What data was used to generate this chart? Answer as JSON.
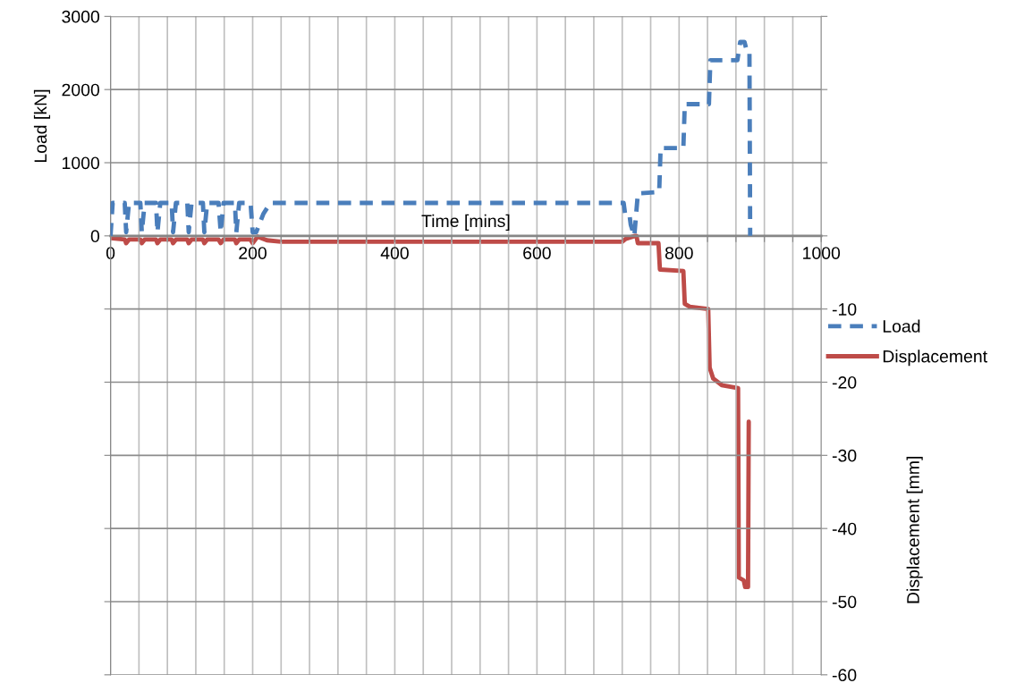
{
  "chart_data": {
    "type": "line",
    "xlabel": "Time [mins]",
    "ylabel": "Load [kN]",
    "y2label": "Displacement [mm]",
    "xlim": [
      0,
      1000
    ],
    "xticks": [
      0,
      {
        "value": 40,
        "label": null
      },
      {
        "value": 80,
        "label": null
      },
      {
        "value": 120,
        "label": null
      },
      {
        "value": 160,
        "label": null
      },
      200,
      {
        "value": 240,
        "label": null
      },
      {
        "value": 280,
        "label": null
      },
      {
        "value": 320,
        "label": null
      },
      {
        "value": 360,
        "label": null
      },
      400,
      {
        "value": 440,
        "label": null
      },
      {
        "value": 480,
        "label": null
      },
      {
        "value": 520,
        "label": null
      },
      {
        "value": 560,
        "label": null
      },
      600,
      {
        "value": 640,
        "label": null
      },
      {
        "value": 680,
        "label": null
      },
      {
        "value": 720,
        "label": null
      },
      {
        "value": 760,
        "label": null
      },
      800,
      {
        "value": 840,
        "label": null
      },
      {
        "value": 880,
        "label": null
      },
      {
        "value": 920,
        "label": null
      },
      {
        "value": 960,
        "label": null
      },
      1000
    ],
    "ylim": [
      -6000,
      3000
    ],
    "yticks": [
      {
        "value": -6000,
        "label": null
      },
      {
        "value": -5000,
        "label": null
      },
      {
        "value": -4000,
        "label": null
      },
      {
        "value": -3000,
        "label": null
      },
      {
        "value": -2000,
        "label": null
      },
      {
        "value": -1000,
        "label": null
      },
      0,
      1000,
      2000,
      3000
    ],
    "y2lim": [
      -60,
      30
    ],
    "y2ticks": [
      -60,
      -50,
      -40,
      -30,
      -20,
      -10,
      {
        "value": 0,
        "label": null
      },
      {
        "value": 10,
        "label": null
      },
      {
        "value": 20,
        "label": null
      },
      {
        "value": 30,
        "label": null
      }
    ],
    "grid": true,
    "legend": "right",
    "series": [
      {
        "name": "Load",
        "color": "#4a7ebb",
        "line_style": "dashed",
        "x": [
          0,
          3,
          20,
          22,
          26,
          42,
          44,
          48,
          64,
          66,
          70,
          86,
          88,
          92,
          108,
          110,
          114,
          130,
          132,
          136,
          152,
          155,
          159,
          175,
          177,
          181,
          197,
          200,
          205,
          215,
          225,
          722,
          724,
          730,
          732,
          737,
          742,
          772,
          774,
          806,
          808,
          842,
          844,
          882,
          886,
          892,
          896,
          899,
          900
        ],
        "values": [
          0,
          450,
          450,
          50,
          450,
          450,
          50,
          450,
          450,
          50,
          450,
          450,
          50,
          450,
          450,
          50,
          450,
          450,
          50,
          450,
          450,
          50,
          450,
          450,
          50,
          450,
          450,
          50,
          50,
          300,
          450,
          450,
          300,
          300,
          150,
          0,
          580,
          600,
          1200,
          1200,
          1800,
          1800,
          2400,
          2400,
          2650,
          2650,
          2500,
          2500,
          0
        ]
      },
      {
        "name": "Displacement",
        "color": "#be4b48",
        "line_style": "solid",
        "axis": "y2",
        "x": [
          0,
          20,
          22,
          26,
          42,
          44,
          48,
          64,
          66,
          70,
          86,
          88,
          92,
          108,
          110,
          114,
          130,
          132,
          136,
          152,
          155,
          159,
          175,
          177,
          181,
          197,
          200,
          207,
          220,
          240,
          720,
          725,
          738,
          740,
          742,
          771,
          773,
          806,
          808,
          815,
          841,
          843,
          848,
          860,
          883,
          884,
          891,
          893,
          897,
          898
        ],
        "values": [
          -0.3,
          -0.5,
          -1.0,
          -0.5,
          -0.5,
          -1.0,
          -0.5,
          -0.5,
          -1.0,
          -0.5,
          -0.5,
          -1.0,
          -0.5,
          -0.5,
          -1.0,
          -0.5,
          -0.5,
          -1.0,
          -0.5,
          -0.5,
          -1.0,
          -0.5,
          -0.5,
          -1.0,
          -0.5,
          -0.5,
          -1.0,
          -0.1,
          -0.6,
          -0.8,
          -0.8,
          -0.4,
          0,
          0,
          -1.0,
          -1.0,
          -4.6,
          -4.8,
          -9.3,
          -9.7,
          -10.0,
          -18.0,
          -19.5,
          -20.4,
          -20.8,
          -46.7,
          -47.1,
          -48.0,
          -48.0,
          -25.4
        ]
      }
    ]
  }
}
